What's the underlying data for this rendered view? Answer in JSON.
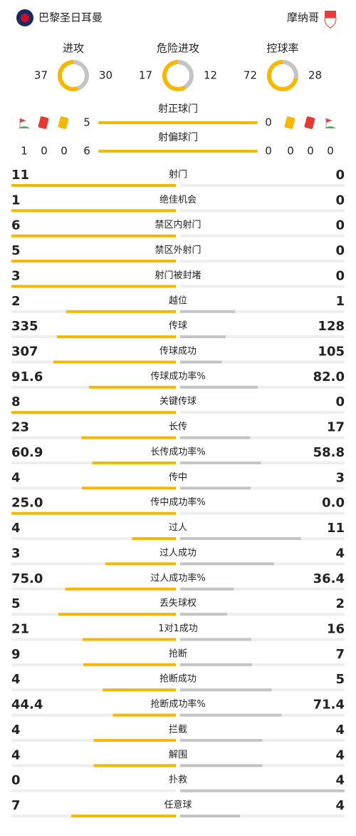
{
  "header": {
    "home_team": "巴黎圣日耳曼",
    "away_team": "摩纳哥"
  },
  "summary": [
    {
      "label": "进攻",
      "home": "37",
      "away": "30"
    },
    {
      "label": "危险进攻",
      "home": "17",
      "away": "12"
    },
    {
      "label": "控球率",
      "home": "72",
      "away": "28"
    }
  ],
  "shots": [
    {
      "label": "射正球门",
      "home": "5",
      "away": "0"
    },
    {
      "label": "射偏球门",
      "home": "6",
      "away": "0"
    }
  ],
  "discipline": {
    "home": [
      "1",
      "0",
      "0"
    ],
    "away": [
      "0",
      "0",
      "0"
    ]
  },
  "stats": [
    {
      "label": "射门",
      "home": "11",
      "away": "0"
    },
    {
      "label": "绝佳机会",
      "home": "1",
      "away": "0"
    },
    {
      "label": "禁区内射门",
      "home": "6",
      "away": "0"
    },
    {
      "label": "禁区外射门",
      "home": "5",
      "away": "0"
    },
    {
      "label": "射门被封堵",
      "home": "3",
      "away": "0"
    },
    {
      "label": "越位",
      "home": "2",
      "away": "1"
    },
    {
      "label": "传球",
      "home": "335",
      "away": "128"
    },
    {
      "label": "传球成功",
      "home": "307",
      "away": "105"
    },
    {
      "label": "传球成功率%",
      "home": "91.6",
      "away": "82.0"
    },
    {
      "label": "关键传球",
      "home": "8",
      "away": "0"
    },
    {
      "label": "长传",
      "home": "23",
      "away": "17"
    },
    {
      "label": "长传成功率%",
      "home": "60.9",
      "away": "58.8"
    },
    {
      "label": "传中",
      "home": "4",
      "away": "3"
    },
    {
      "label": "传中成功率%",
      "home": "25.0",
      "away": "0.0"
    },
    {
      "label": "过人",
      "home": "4",
      "away": "11"
    },
    {
      "label": "过人成功",
      "home": "3",
      "away": "4"
    },
    {
      "label": "过人成功率%",
      "home": "75.0",
      "away": "36.4"
    },
    {
      "label": "丢失球权",
      "home": "5",
      "away": "2"
    },
    {
      "label": "1对1成功",
      "home": "21",
      "away": "16"
    },
    {
      "label": "抢断",
      "home": "9",
      "away": "7"
    },
    {
      "label": "抢断成功",
      "home": "4",
      "away": "5"
    },
    {
      "label": "抢断成功率%",
      "home": "44.4",
      "away": "71.4"
    },
    {
      "label": "拦截",
      "home": "4",
      "away": "4"
    },
    {
      "label": "解围",
      "home": "4",
      "away": "4"
    },
    {
      "label": "扑救",
      "home": "0",
      "away": "4"
    },
    {
      "label": "任意球",
      "home": "7",
      "away": "4"
    }
  ]
}
